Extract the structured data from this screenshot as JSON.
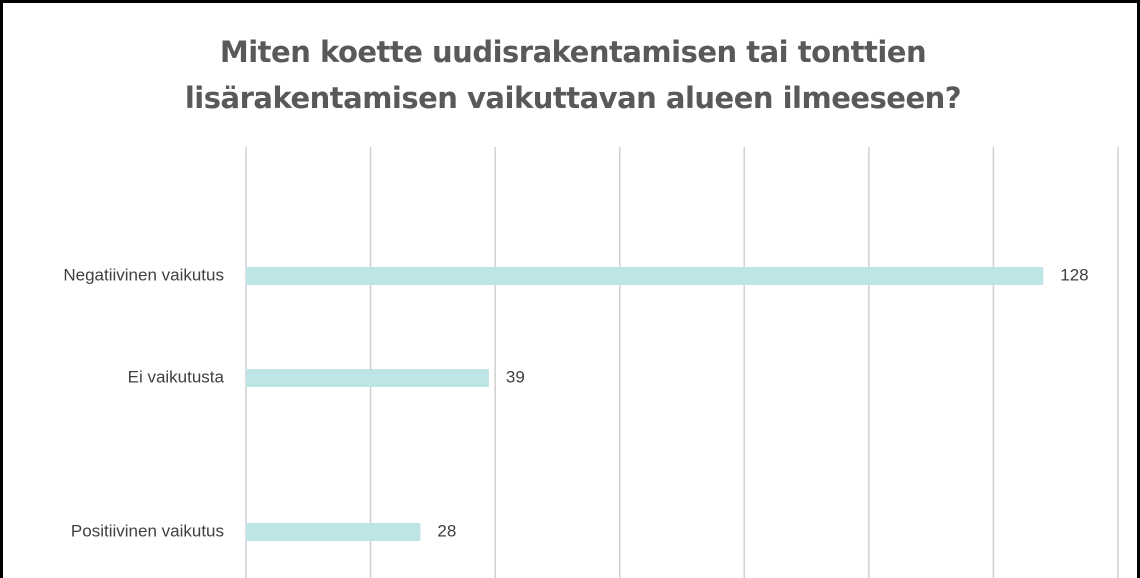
{
  "chart_data": {
    "type": "barh",
    "title": "Miten koette uudisrakentamisen tai tonttien lisärakentamisen vaikuttavan alueen ilmeeseen?",
    "categories": [
      "Negatiivinen vaikutus",
      "Ei vaikutusta",
      "Positiivinen vaikutus"
    ],
    "values": [
      128,
      39,
      28
    ],
    "color": "#bde5e6",
    "xlim": [
      0,
      140
    ],
    "xticks": [
      0,
      20,
      40,
      60,
      80,
      100,
      120,
      140
    ],
    "grid": true
  }
}
